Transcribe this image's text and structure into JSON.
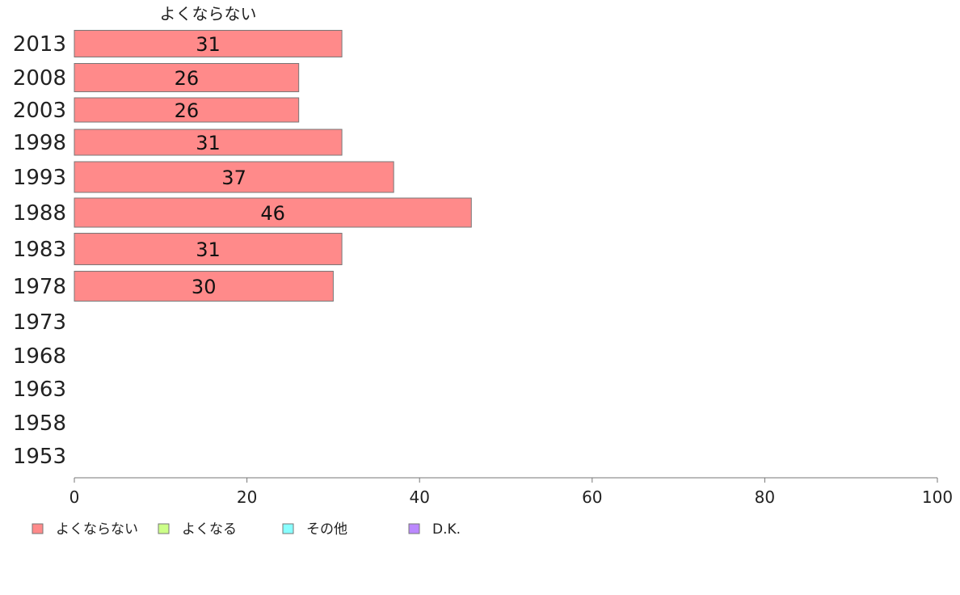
{
  "chart_data": {
    "type": "bar",
    "orientation": "horizontal",
    "stacked": true,
    "categories": [
      "2013",
      "2008",
      "2003",
      "1998",
      "1993",
      "1988",
      "1983",
      "1978",
      "1973",
      "1968",
      "1963",
      "1958",
      "1953"
    ],
    "series": [
      {
        "name": "よくならない",
        "color": "#ff8a8a",
        "values": [
          31,
          26,
          26,
          31,
          37,
          46,
          31,
          30,
          null,
          null,
          null,
          null,
          null
        ]
      },
      {
        "name": "よくなる",
        "color": "#ccff88",
        "values": [
          null,
          null,
          null,
          null,
          null,
          null,
          null,
          null,
          null,
          null,
          null,
          null,
          null
        ]
      },
      {
        "name": "その他",
        "color": "#88ffff",
        "values": [
          null,
          null,
          null,
          null,
          null,
          null,
          null,
          null,
          null,
          null,
          null,
          null,
          null
        ]
      },
      {
        "name": "D.K.",
        "color": "#bb88ff",
        "values": [
          null,
          null,
          null,
          null,
          null,
          null,
          null,
          null,
          null,
          null,
          null,
          null,
          null
        ]
      }
    ],
    "column_header": "よくならない",
    "xlim": [
      0,
      100
    ],
    "xticks": [
      0,
      20,
      40,
      60,
      80,
      100
    ],
    "grid": false,
    "legend_position": "bottom-left"
  }
}
